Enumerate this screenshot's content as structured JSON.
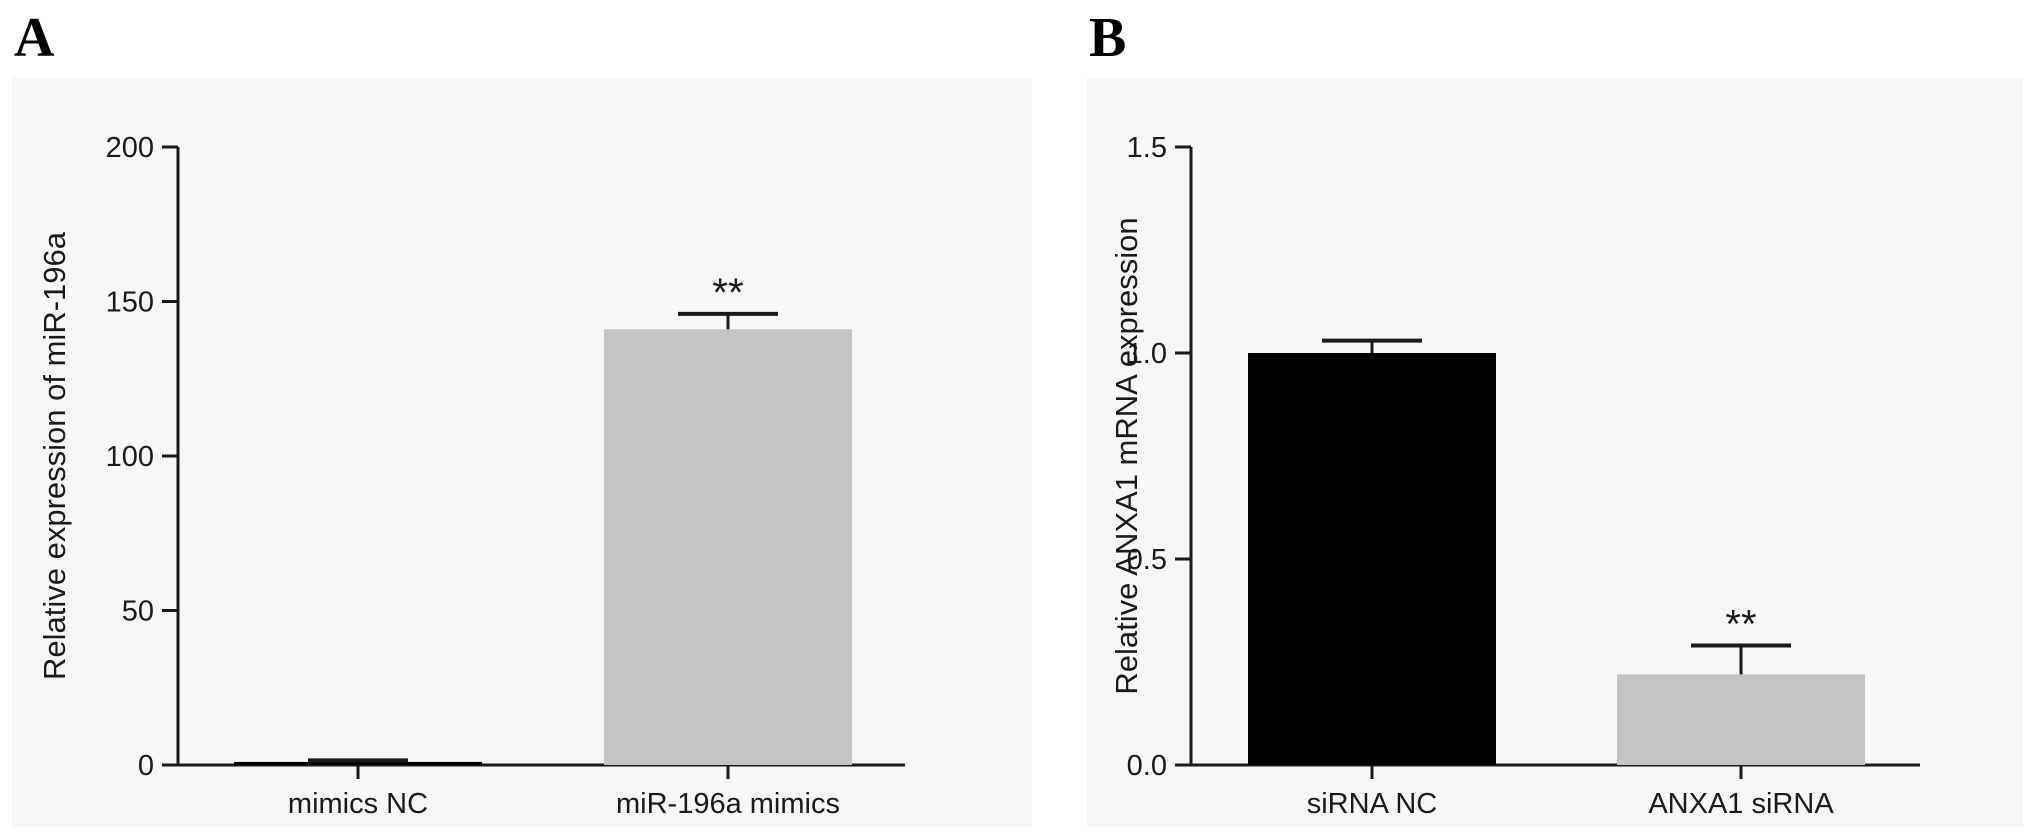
{
  "chart_data": [
    {
      "panel": "A",
      "type": "bar",
      "categories": [
        "mimics NC",
        "miR-196a mimics"
      ],
      "values": [
        1,
        141
      ],
      "errors": [
        0.5,
        5
      ],
      "significance": [
        "",
        "**"
      ],
      "bar_colors": [
        "#000000",
        "#c4c4c4"
      ],
      "ylabel": "Relative expression of miR-196a",
      "xlabel": "",
      "ylim": [
        0,
        200
      ],
      "yticks": [
        0,
        50,
        100,
        150,
        200
      ],
      "ytick_labels": [
        "0",
        "50",
        "100",
        "150",
        "200"
      ],
      "grid": false
    },
    {
      "panel": "B",
      "type": "bar",
      "categories": [
        "siRNA NC",
        "ANXA1 siRNA"
      ],
      "values": [
        1.0,
        0.22
      ],
      "errors": [
        0.03,
        0.07
      ],
      "significance": [
        "",
        "**"
      ],
      "bar_colors": [
        "#000000",
        "#c4c4c4"
      ],
      "ylabel": "Relative ANXA1 mRNA expression",
      "xlabel": "",
      "ylim": [
        0,
        1.5
      ],
      "yticks": [
        0,
        0.5,
        1.0,
        1.5
      ],
      "ytick_labels": [
        "0.0",
        "0.5",
        "1.0",
        "1.5"
      ],
      "grid": false
    }
  ]
}
